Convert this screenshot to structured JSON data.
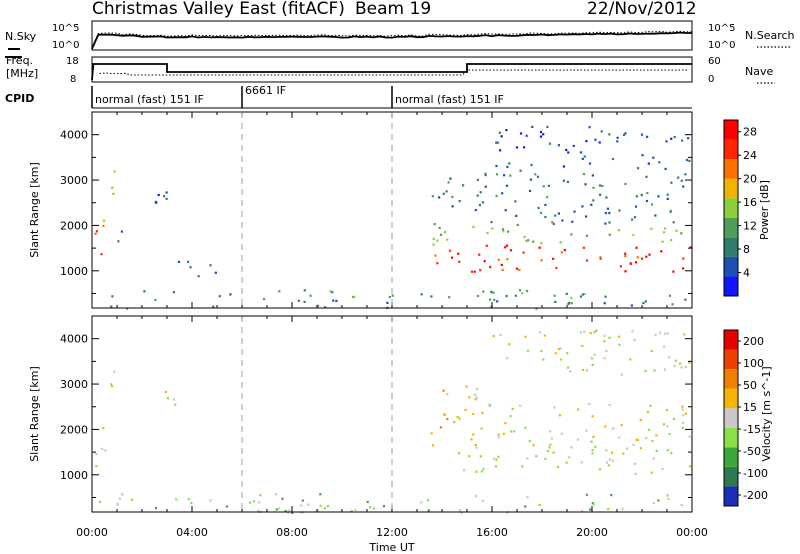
{
  "header": {
    "title": "Christmas Valley East (fitACF)",
    "beam": "Beam 19",
    "date": "22/Nov/2012"
  },
  "nsky_panel": {
    "left_label": "N.Sky",
    "left_ticks": [
      "10^5",
      "10^0"
    ],
    "right_label": "N.Search",
    "right_ticks": [
      "10^5",
      "10^0"
    ]
  },
  "freq_panel": {
    "left_label_1": "Freq.",
    "left_label_2": "[MHz]",
    "left_ticks": [
      "18",
      "8"
    ],
    "right_label": "Nave",
    "right_ticks": [
      "60",
      "0"
    ]
  },
  "cpid": {
    "label": "CPID",
    "segments": [
      {
        "start_hour": 0,
        "end_hour": 6,
        "name": "normal (fast) 151 IF"
      },
      {
        "start_hour": 6,
        "end_hour": 12,
        "name": "6661 IF"
      },
      {
        "start_hour": 12,
        "end_hour": 24,
        "name": "normal (fast) 151 IF"
      }
    ]
  },
  "colors": {
    "power": [
      "#1414ff",
      "#1e50b4",
      "#2e7d6e",
      "#4f9e5a",
      "#8ccf3a",
      "#f0b400",
      "#ff7000",
      "#ff2600",
      "#ff0000"
    ],
    "velocity": [
      "#1b2eb8",
      "#2e7a52",
      "#3da83a",
      "#8be04a",
      "#c8c8c8",
      "#f5b400",
      "#f08000",
      "#f04000",
      "#e60000"
    ],
    "ground": "#c0c0c0"
  },
  "chart_data": [
    {
      "type": "heatmap",
      "name": "power",
      "ylabel": "Slant Range [km]",
      "ylim": [
        180,
        4500
      ],
      "xlim": [
        0,
        24
      ],
      "yticks": [
        1000,
        2000,
        3000,
        4000
      ],
      "colorbar_label": "Power [dB]",
      "colorbar_ticks": [
        4,
        8,
        12,
        16,
        20,
        24,
        28
      ],
      "colorbar_range": [
        0,
        30
      ],
      "regions": [
        {
          "x": [
            0.0,
            0.5
          ],
          "y": [
            1200,
            2300
          ],
          "level": 22
        },
        {
          "x": [
            0.4,
            0.9
          ],
          "y": [
            2600,
            3300
          ],
          "level": 18
        },
        {
          "x": [
            0.9,
            1.4
          ],
          "y": [
            1500,
            1900
          ],
          "level": 6
        },
        {
          "x": [
            2.5,
            3.6
          ],
          "y": [
            2400,
            2900
          ],
          "level": 6
        },
        {
          "x": [
            3.0,
            5.0
          ],
          "y": [
            900,
            1300
          ],
          "level": 6
        },
        {
          "x": [
            0.0,
            23.8
          ],
          "y": [
            180,
            600
          ],
          "level": 10
        },
        {
          "x": [
            13.5,
            24.0
          ],
          "y": [
            1000,
            1600
          ],
          "level": 26
        },
        {
          "x": [
            13.5,
            24.0
          ],
          "y": [
            1600,
            2000
          ],
          "level": 14
        },
        {
          "x": [
            13.5,
            24.0
          ],
          "y": [
            2000,
            3200
          ],
          "level": 8
        },
        {
          "x": [
            16.0,
            24.0
          ],
          "y": [
            3200,
            4200
          ],
          "level": 5
        }
      ]
    },
    {
      "type": "heatmap",
      "name": "velocity",
      "ylabel": "Slant Range [km]",
      "ylim": [
        180,
        4500
      ],
      "xlim": [
        0,
        24
      ],
      "yticks": [
        1000,
        2000,
        3000,
        4000
      ],
      "colorbar_label": "Velocity [m s^-1]",
      "colorbar_ticks": [
        200,
        100,
        50,
        15,
        -15,
        -50,
        -100,
        -200
      ],
      "colorbar_range": [
        -250,
        250
      ],
      "regions": [
        {
          "x": [
            0.0,
            0.5
          ],
          "y": [
            1200,
            2300
          ],
          "level": -10
        },
        {
          "x": [
            0.4,
            0.9
          ],
          "y": [
            2600,
            3300
          ],
          "level": -20
        },
        {
          "x": [
            2.5,
            3.6
          ],
          "y": [
            2400,
            2900
          ],
          "level": 0
        },
        {
          "x": [
            0.0,
            23.8
          ],
          "y": [
            180,
            600
          ],
          "level": -40
        },
        {
          "x": [
            13.5,
            15.5
          ],
          "y": [
            1500,
            3000
          ],
          "level": 40
        },
        {
          "x": [
            14.5,
            24.0
          ],
          "y": [
            1000,
            1800
          ],
          "level": 0
        },
        {
          "x": [
            15.5,
            24.0
          ],
          "y": [
            1800,
            2600
          ],
          "level": -5
        },
        {
          "x": [
            16.0,
            24.0
          ],
          "y": [
            3200,
            4200
          ],
          "level": -20
        }
      ]
    }
  ],
  "xaxis": {
    "label": "Time UT",
    "ticks": [
      "00:00",
      "04:00",
      "08:00",
      "12:00",
      "16:00",
      "20:00",
      "00:00"
    ],
    "hours": [
      0,
      4,
      8,
      12,
      16,
      20,
      24
    ]
  }
}
